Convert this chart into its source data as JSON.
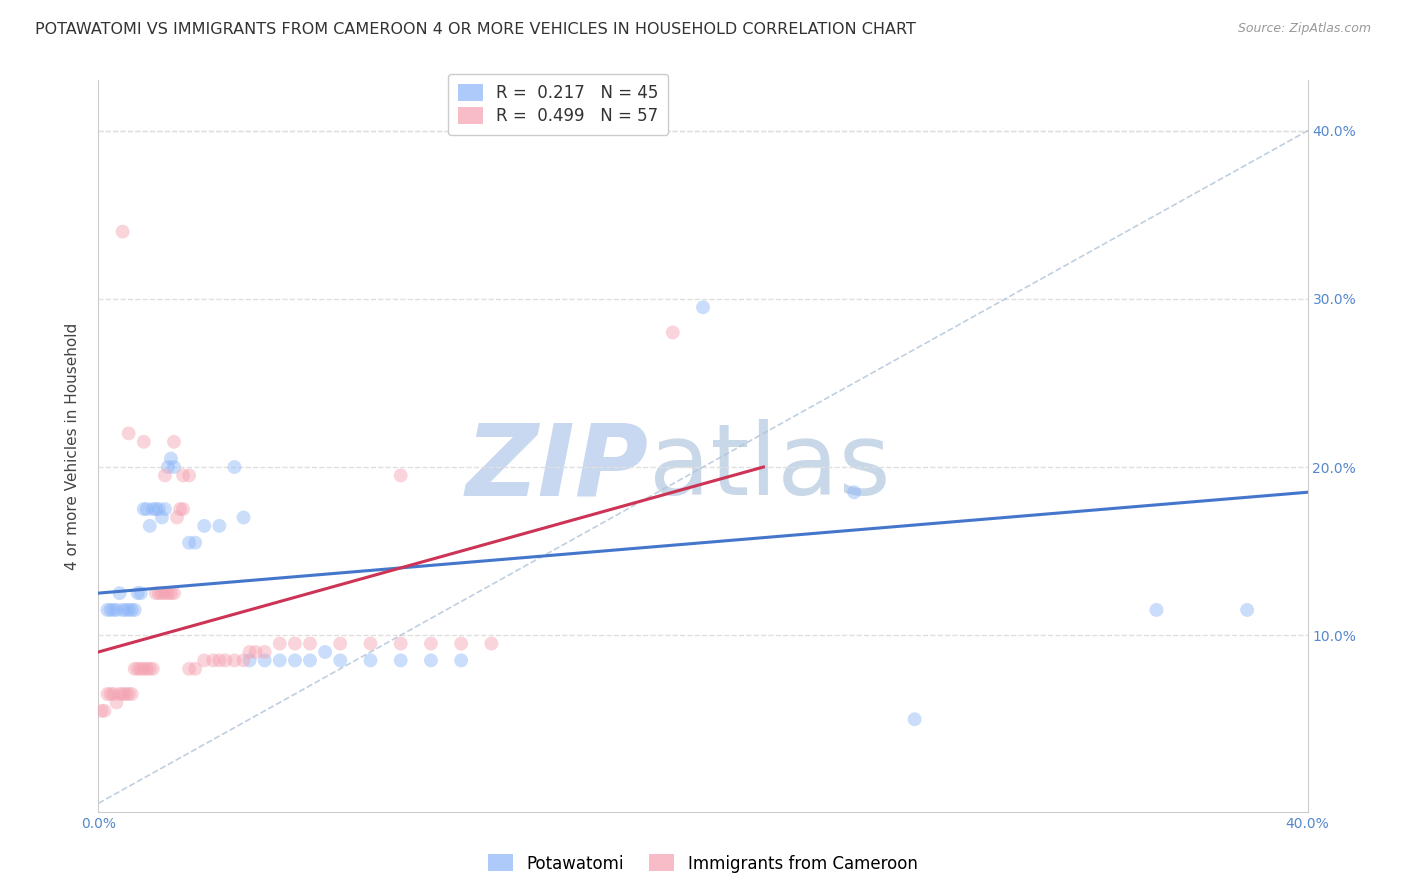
{
  "title": "POTAWATOMI VS IMMIGRANTS FROM CAMEROON 4 OR MORE VEHICLES IN HOUSEHOLD CORRELATION CHART",
  "source": "Source: ZipAtlas.com",
  "ylabel": "4 or more Vehicles in Household",
  "xlim": [
    0.0,
    0.4
  ],
  "ylim": [
    -0.005,
    0.43
  ],
  "yticks": [
    0.0,
    0.1,
    0.2,
    0.3,
    0.4
  ],
  "xtick_vals": [
    0.0,
    0.1,
    0.2,
    0.3,
    0.4
  ],
  "blue_color": "#8ab4f8",
  "pink_color": "#f4a0b0",
  "blue_line_color": "#4477cc",
  "pink_line_color": "#cc3355",
  "R_blue": 0.217,
  "N_blue": 45,
  "R_pink": 0.499,
  "N_pink": 57,
  "blue_line_x": [
    0.0,
    0.4
  ],
  "blue_line_y": [
    0.125,
    0.185
  ],
  "pink_line_x": [
    0.0,
    0.22
  ],
  "pink_line_y": [
    0.09,
    0.2
  ],
  "blue_points": [
    [
      0.003,
      0.115
    ],
    [
      0.004,
      0.115
    ],
    [
      0.005,
      0.115
    ],
    [
      0.006,
      0.115
    ],
    [
      0.007,
      0.125
    ],
    [
      0.008,
      0.115
    ],
    [
      0.009,
      0.115
    ],
    [
      0.01,
      0.115
    ],
    [
      0.011,
      0.115
    ],
    [
      0.012,
      0.115
    ],
    [
      0.013,
      0.125
    ],
    [
      0.014,
      0.125
    ],
    [
      0.015,
      0.175
    ],
    [
      0.016,
      0.175
    ],
    [
      0.017,
      0.165
    ],
    [
      0.018,
      0.175
    ],
    [
      0.019,
      0.175
    ],
    [
      0.02,
      0.175
    ],
    [
      0.021,
      0.17
    ],
    [
      0.022,
      0.175
    ],
    [
      0.023,
      0.2
    ],
    [
      0.024,
      0.205
    ],
    [
      0.025,
      0.2
    ],
    [
      0.03,
      0.155
    ],
    [
      0.032,
      0.155
    ],
    [
      0.035,
      0.165
    ],
    [
      0.04,
      0.165
    ],
    [
      0.045,
      0.2
    ],
    [
      0.048,
      0.17
    ],
    [
      0.05,
      0.085
    ],
    [
      0.055,
      0.085
    ],
    [
      0.06,
      0.085
    ],
    [
      0.065,
      0.085
    ],
    [
      0.07,
      0.085
    ],
    [
      0.075,
      0.09
    ],
    [
      0.08,
      0.085
    ],
    [
      0.09,
      0.085
    ],
    [
      0.1,
      0.085
    ],
    [
      0.11,
      0.085
    ],
    [
      0.12,
      0.085
    ],
    [
      0.2,
      0.295
    ],
    [
      0.25,
      0.185
    ],
    [
      0.27,
      0.05
    ],
    [
      0.35,
      0.115
    ],
    [
      0.38,
      0.115
    ]
  ],
  "pink_points": [
    [
      0.001,
      0.055
    ],
    [
      0.002,
      0.055
    ],
    [
      0.003,
      0.065
    ],
    [
      0.004,
      0.065
    ],
    [
      0.005,
      0.065
    ],
    [
      0.006,
      0.06
    ],
    [
      0.007,
      0.065
    ],
    [
      0.008,
      0.065
    ],
    [
      0.009,
      0.065
    ],
    [
      0.01,
      0.065
    ],
    [
      0.011,
      0.065
    ],
    [
      0.012,
      0.08
    ],
    [
      0.013,
      0.08
    ],
    [
      0.014,
      0.08
    ],
    [
      0.015,
      0.08
    ],
    [
      0.016,
      0.08
    ],
    [
      0.017,
      0.08
    ],
    [
      0.018,
      0.08
    ],
    [
      0.019,
      0.125
    ],
    [
      0.02,
      0.125
    ],
    [
      0.021,
      0.125
    ],
    [
      0.022,
      0.125
    ],
    [
      0.023,
      0.125
    ],
    [
      0.024,
      0.125
    ],
    [
      0.025,
      0.125
    ],
    [
      0.026,
      0.17
    ],
    [
      0.027,
      0.175
    ],
    [
      0.028,
      0.175
    ],
    [
      0.03,
      0.08
    ],
    [
      0.032,
      0.08
    ],
    [
      0.035,
      0.085
    ],
    [
      0.038,
      0.085
    ],
    [
      0.04,
      0.085
    ],
    [
      0.042,
      0.085
    ],
    [
      0.045,
      0.085
    ],
    [
      0.048,
      0.085
    ],
    [
      0.05,
      0.09
    ],
    [
      0.052,
      0.09
    ],
    [
      0.055,
      0.09
    ],
    [
      0.06,
      0.095
    ],
    [
      0.065,
      0.095
    ],
    [
      0.07,
      0.095
    ],
    [
      0.08,
      0.095
    ],
    [
      0.09,
      0.095
    ],
    [
      0.1,
      0.095
    ],
    [
      0.11,
      0.095
    ],
    [
      0.12,
      0.095
    ],
    [
      0.13,
      0.095
    ],
    [
      0.01,
      0.22
    ],
    [
      0.015,
      0.215
    ],
    [
      0.022,
      0.195
    ],
    [
      0.025,
      0.215
    ],
    [
      0.1,
      0.195
    ],
    [
      0.19,
      0.28
    ],
    [
      0.008,
      0.34
    ],
    [
      0.028,
      0.195
    ],
    [
      0.03,
      0.195
    ]
  ],
  "watermark_zip": "ZIP",
  "watermark_atlas": "atlas",
  "watermark_color_zip": "#c8d8f0",
  "watermark_color_atlas": "#c8d8e8",
  "background_color": "#ffffff",
  "grid_color": "#e0e0e0",
  "title_fontsize": 11.5,
  "axis_label_fontsize": 11,
  "tick_fontsize": 10,
  "legend_fontsize": 12,
  "marker_size": 100,
  "marker_alpha": 0.45,
  "line_width": 2.2
}
